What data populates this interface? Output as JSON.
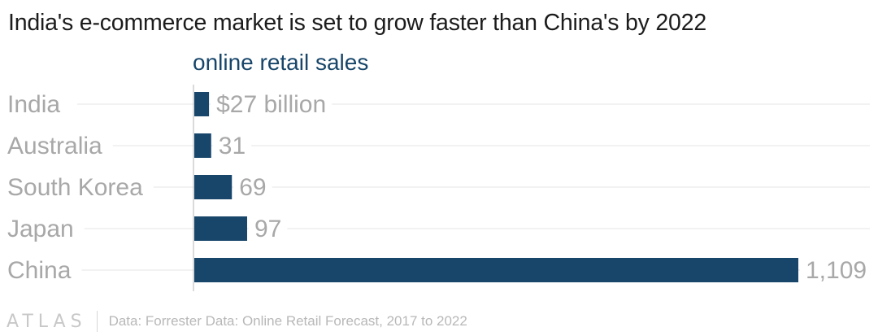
{
  "title": "India's e-commerce market is set to grow faster than China's by 2022",
  "footer": {
    "logo": "ATLAS",
    "source": "Data: Forrester Data: Online Retail Forecast, 2017 to 2022"
  },
  "chart_data": {
    "type": "bar",
    "orientation": "horizontal",
    "series": [
      {
        "name": "online retail sales",
        "values": [
          27,
          31,
          69,
          97,
          1109
        ]
      }
    ],
    "categories": [
      "India",
      "Australia",
      "South Korea",
      "Japan",
      "China"
    ],
    "data_labels": [
      "$27 billion",
      "31",
      "69",
      "97",
      "1,109"
    ],
    "xlim": [
      0,
      1109
    ],
    "grid": true,
    "colors": {
      "bar": "#17466a",
      "series_title": "#17466a",
      "label": "#a8a8a8",
      "grid": "#e6e6e6"
    }
  }
}
